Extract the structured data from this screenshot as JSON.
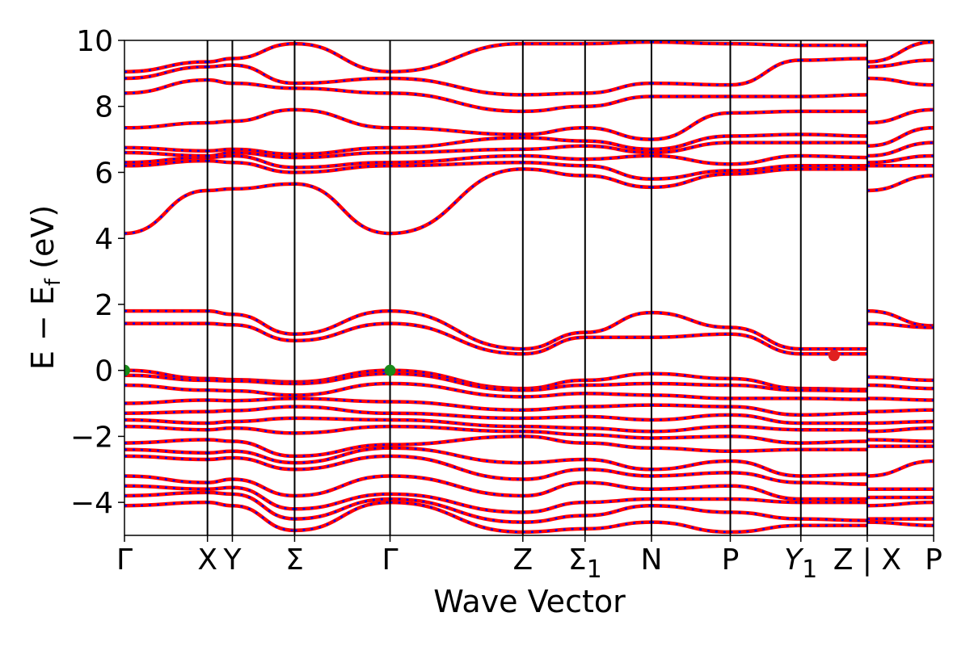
{
  "chart_data": {
    "type": "line",
    "xlabel": "Wave Vector",
    "ylabel": "E − E",
    "ylabel_subscript": "f",
    "ylabel_unit": "(eV)",
    "ylim": [
      -5,
      10
    ],
    "yticks": [
      -4,
      -2,
      0,
      2,
      4,
      6,
      8,
      10
    ],
    "ytick_labels": [
      "−4",
      "−2",
      "0",
      "2",
      "4",
      "6",
      "8",
      "10"
    ],
    "kpoints": [
      {
        "label": "Γ",
        "sub": "",
        "x": 0.0
      },
      {
        "label": "X",
        "sub": "",
        "x": 1.0
      },
      {
        "label": "Y",
        "sub": "",
        "x": 1.3
      },
      {
        "label": "Σ",
        "sub": "",
        "x": 2.05
      },
      {
        "label": "Γ",
        "sub": "",
        "x": 3.2
      },
      {
        "label": "Z",
        "sub": "",
        "x": 4.8
      },
      {
        "label": "Σ",
        "sub": "1",
        "x": 5.55
      },
      {
        "label": "N",
        "sub": "",
        "x": 6.35
      },
      {
        "label": "P",
        "sub": "",
        "x": 7.3
      },
      {
        "label": "Y",
        "sub": "1",
        "x": 8.15
      },
      {
        "label": "Z | X",
        "sub": "",
        "x": 8.95
      },
      {
        "label": "P",
        "sub": "",
        "x": 9.75
      }
    ],
    "xlim": [
      0,
      9.75
    ],
    "grid": false,
    "legend": "none",
    "series_style": {
      "line_color": "#ff0000",
      "dash_color": "#0000ff"
    },
    "markers": [
      {
        "x": 0.0,
        "y": 0.0,
        "color": "#1a8a1a"
      },
      {
        "x": 3.2,
        "y": 0.0,
        "color": "#1a8a1a"
      },
      {
        "x": 8.55,
        "y": 0.45,
        "color": "#e02020"
      }
    ],
    "segments": [
      {
        "x0": 0.0,
        "x1": 1.0,
        "y0s": [
          0.0,
          -0.15,
          -0.45,
          -1.0,
          -1.3,
          -1.5,
          -1.7,
          -2.2,
          -2.4,
          -2.6,
          -3.2,
          -3.5,
          -3.8,
          -4.1,
          4.15,
          6.2,
          6.3,
          6.6,
          6.75,
          7.35,
          8.4,
          8.85,
          9.05
        ],
        "y1s": [
          -0.25,
          -0.3,
          -0.6,
          -0.9,
          -1.25,
          -1.6,
          -1.8,
          -2.1,
          -2.5,
          -2.7,
          -3.4,
          -3.6,
          -3.7,
          -4.0,
          5.45,
          6.35,
          6.45,
          6.5,
          6.65,
          7.5,
          8.8,
          9.2,
          9.35
        ]
      },
      {
        "x0": 1.0,
        "x1": 1.3,
        "y0s": [
          -0.25,
          -0.3,
          -0.6,
          -0.9,
          -1.25,
          -1.6,
          -1.8,
          -2.1,
          -2.5,
          -2.7,
          -3.4,
          -3.6,
          -3.7,
          -4.0,
          5.45,
          6.35,
          6.45,
          6.5,
          6.65,
          7.5,
          8.8,
          9.2,
          9.35
        ],
        "y1s": [
          -0.28,
          -0.32,
          -0.62,
          -0.92,
          -1.22,
          -1.55,
          -1.75,
          -2.15,
          -2.45,
          -2.65,
          -3.3,
          -3.55,
          -3.75,
          -4.1,
          5.5,
          6.3,
          6.5,
          6.6,
          6.7,
          7.55,
          8.7,
          9.25,
          9.45
        ]
      },
      {
        "x0": 1.3,
        "x1": 2.05,
        "y0s": [
          -0.28,
          -0.32,
          -0.62,
          -0.92,
          -1.22,
          -1.55,
          -1.75,
          -2.15,
          -2.45,
          -2.65,
          -3.3,
          -3.55,
          -3.75,
          -4.1,
          5.5,
          6.3,
          6.5,
          6.6,
          6.7,
          7.55,
          8.7,
          9.25,
          9.45
        ],
        "y1s": [
          -0.35,
          -0.4,
          -0.75,
          -0.85,
          -1.1,
          -1.45,
          -1.9,
          -2.6,
          -2.8,
          -3.0,
          -3.8,
          -4.2,
          -4.5,
          -4.85,
          5.65,
          6.0,
          6.15,
          6.45,
          6.55,
          7.9,
          8.55,
          8.7,
          9.9
        ]
      },
      {
        "x0": 2.05,
        "x1": 3.2,
        "y0s": [
          -0.35,
          -0.4,
          -0.75,
          -0.85,
          -1.1,
          -1.45,
          -1.9,
          -2.6,
          -2.8,
          -3.0,
          -3.8,
          -4.2,
          -4.5,
          -4.85,
          5.65,
          6.0,
          6.15,
          6.45,
          6.55,
          7.9,
          8.55,
          8.7,
          9.9
        ],
        "y1s": [
          0.0,
          -0.1,
          -0.4,
          -0.95,
          -1.3,
          -1.5,
          -1.7,
          -2.25,
          -2.35,
          -2.6,
          -3.2,
          -3.75,
          -3.9,
          -4.0,
          4.15,
          6.2,
          6.3,
          6.6,
          6.75,
          7.35,
          8.4,
          8.85,
          9.05
        ]
      },
      {
        "x0": 3.2,
        "x1": 4.8,
        "y0s": [
          0.0,
          -0.1,
          -0.4,
          -0.95,
          -1.3,
          -1.5,
          -1.7,
          -2.25,
          -2.35,
          -2.6,
          -3.2,
          -3.75,
          -3.9,
          -4.0,
          4.15,
          6.2,
          6.3,
          6.6,
          6.75,
          7.35,
          8.4,
          8.85,
          9.05
        ],
        "y1s": [
          -0.55,
          -0.6,
          -0.8,
          -1.2,
          -1.45,
          -1.7,
          -1.85,
          -2.0,
          -2.8,
          -3.3,
          -3.8,
          -4.3,
          -4.6,
          -4.9,
          6.1,
          6.3,
          6.5,
          6.7,
          7.05,
          7.15,
          7.85,
          8.35,
          9.9
        ]
      },
      {
        "x0": 4.8,
        "x1": 5.55,
        "y0s": [
          -0.55,
          -0.6,
          -0.8,
          -1.2,
          -1.45,
          -1.7,
          -1.85,
          -2.0,
          -2.8,
          -3.3,
          -3.8,
          -4.3,
          -4.6,
          -4.9,
          6.1,
          6.3,
          6.5,
          6.7,
          7.05,
          7.15,
          7.85,
          8.35,
          9.9
        ],
        "y1s": [
          -0.3,
          -0.45,
          -0.7,
          -1.1,
          -1.4,
          -1.75,
          -1.95,
          -2.2,
          -2.7,
          -3.0,
          -3.4,
          -4.0,
          -4.4,
          -4.8,
          5.9,
          6.2,
          6.4,
          6.8,
          6.95,
          7.35,
          8.0,
          8.4,
          9.9
        ]
      },
      {
        "x0": 5.55,
        "x1": 6.35,
        "y0s": [
          -0.3,
          -0.45,
          -0.7,
          -1.1,
          -1.4,
          -1.75,
          -1.95,
          -2.2,
          -2.7,
          -3.0,
          -3.4,
          -4.0,
          -4.4,
          -4.8,
          5.9,
          6.2,
          6.4,
          6.8,
          6.95,
          7.35,
          8.0,
          8.4,
          9.9
        ],
        "y1s": [
          -0.1,
          -0.4,
          -0.75,
          -1.05,
          -1.5,
          -1.85,
          -2.05,
          -2.35,
          -3.0,
          -3.2,
          -3.6,
          -3.9,
          -4.1,
          -4.6,
          5.55,
          5.8,
          6.5,
          6.6,
          6.7,
          7.0,
          8.3,
          8.7,
          9.95
        ]
      },
      {
        "x0": 6.35,
        "x1": 7.3,
        "y0s": [
          -0.1,
          -0.4,
          -0.75,
          -1.05,
          -1.5,
          -1.85,
          -2.05,
          -2.35,
          -3.0,
          -3.2,
          -3.6,
          -3.9,
          -4.1,
          -4.6,
          5.55,
          5.8,
          6.5,
          6.6,
          6.7,
          7.0,
          8.3,
          8.7,
          9.95
        ],
        "y1s": [
          -0.25,
          -0.45,
          -0.85,
          -1.1,
          -1.35,
          -1.7,
          -2.0,
          -2.45,
          -2.75,
          -3.1,
          -3.5,
          -3.9,
          -4.3,
          -4.9,
          5.95,
          6.05,
          6.25,
          6.9,
          7.1,
          7.8,
          8.3,
          8.65,
          9.9
        ]
      },
      {
        "x0": 7.3,
        "x1": 8.15,
        "y0s": [
          -0.25,
          -0.45,
          -0.85,
          -1.1,
          -1.35,
          -1.7,
          -2.0,
          -2.45,
          -2.75,
          -3.1,
          -3.5,
          -3.9,
          -4.3,
          -4.9,
          5.95,
          6.05,
          6.25,
          6.9,
          7.1,
          7.8,
          8.3,
          8.65,
          9.9
        ],
        "y1s": [
          -0.55,
          -0.6,
          -0.85,
          -1.35,
          -1.6,
          -1.8,
          -2.2,
          -2.4,
          -3.2,
          -3.4,
          -3.9,
          -4.0,
          -4.5,
          -4.7,
          6.1,
          6.2,
          6.5,
          6.9,
          7.15,
          7.85,
          8.3,
          9.4,
          9.85
        ]
      },
      {
        "x0": 8.15,
        "x1": 8.95,
        "y0s": [
          -0.55,
          -0.6,
          -0.85,
          -1.35,
          -1.6,
          -1.8,
          -2.2,
          -2.4,
          -3.2,
          -3.4,
          -3.9,
          -4.0,
          -4.5,
          -4.7,
          6.1,
          6.2,
          6.5,
          6.9,
          7.15,
          7.85,
          8.3,
          9.4,
          9.85
        ],
        "y1s": [
          -0.58,
          -0.62,
          -0.88,
          -1.3,
          -1.6,
          -1.8,
          -2.15,
          -2.4,
          -3.15,
          -3.45,
          -3.9,
          -4.0,
          -4.55,
          -4.7,
          6.1,
          6.2,
          6.45,
          6.9,
          7.1,
          7.85,
          8.35,
          9.45,
          9.85
        ]
      },
      {
        "x0": 8.95,
        "x1": 9.75,
        "y0s": [
          -0.2,
          -0.45,
          -0.85,
          -1.25,
          -1.6,
          -1.85,
          -2.1,
          -2.3,
          -3.2,
          -3.6,
          -3.85,
          -4.1,
          -4.5,
          -4.6,
          5.45,
          6.2,
          6.3,
          6.5,
          6.8,
          7.5,
          8.85,
          9.2,
          9.35
        ],
        "y1s": [
          -0.3,
          -0.55,
          -0.9,
          -1.2,
          -1.55,
          -1.75,
          -2.15,
          -2.3,
          -2.75,
          -3.6,
          -3.85,
          -4.0,
          -4.5,
          -4.7,
          5.9,
          6.2,
          6.5,
          6.9,
          7.35,
          7.9,
          8.65,
          9.4,
          9.95
        ]
      },
      {
        "x0": 0.0,
        "x1": 1.0,
        "y0s": [
          1.8,
          1.42
        ],
        "y1s": [
          1.8,
          1.42
        ]
      },
      {
        "x0": 1.0,
        "x1": 1.3,
        "y0s": [
          1.8,
          1.42
        ],
        "y1s": [
          1.7,
          1.38
        ]
      },
      {
        "x0": 1.3,
        "x1": 2.05,
        "y0s": [
          1.7,
          1.38
        ],
        "y1s": [
          1.1,
          0.9
        ]
      },
      {
        "x0": 2.05,
        "x1": 3.2,
        "y0s": [
          1.1,
          0.9
        ],
        "y1s": [
          1.8,
          1.42
        ]
      },
      {
        "x0": 3.2,
        "x1": 4.8,
        "y0s": [
          1.8,
          1.42
        ],
        "y1s": [
          0.65,
          0.5
        ]
      },
      {
        "x0": 4.8,
        "x1": 5.55,
        "y0s": [
          0.65,
          0.5
        ],
        "y1s": [
          1.15,
          1.0
        ]
      },
      {
        "x0": 5.55,
        "x1": 6.35,
        "y0s": [
          1.15,
          1.0
        ],
        "y1s": [
          1.75,
          1.0
        ]
      },
      {
        "x0": 6.35,
        "x1": 7.3,
        "y0s": [
          1.75,
          1.0
        ],
        "y1s": [
          1.3,
          1.1
        ]
      },
      {
        "x0": 7.3,
        "x1": 8.15,
        "y0s": [
          1.3,
          1.1
        ],
        "y1s": [
          0.65,
          0.5
        ]
      },
      {
        "x0": 8.15,
        "x1": 8.95,
        "y0s": [
          0.65,
          0.5
        ],
        "y1s": [
          0.65,
          0.5
        ]
      },
      {
        "x0": 8.95,
        "x1": 9.75,
        "y0s": [
          1.8,
          1.42
        ],
        "y1s": [
          1.35,
          1.3
        ]
      }
    ]
  }
}
